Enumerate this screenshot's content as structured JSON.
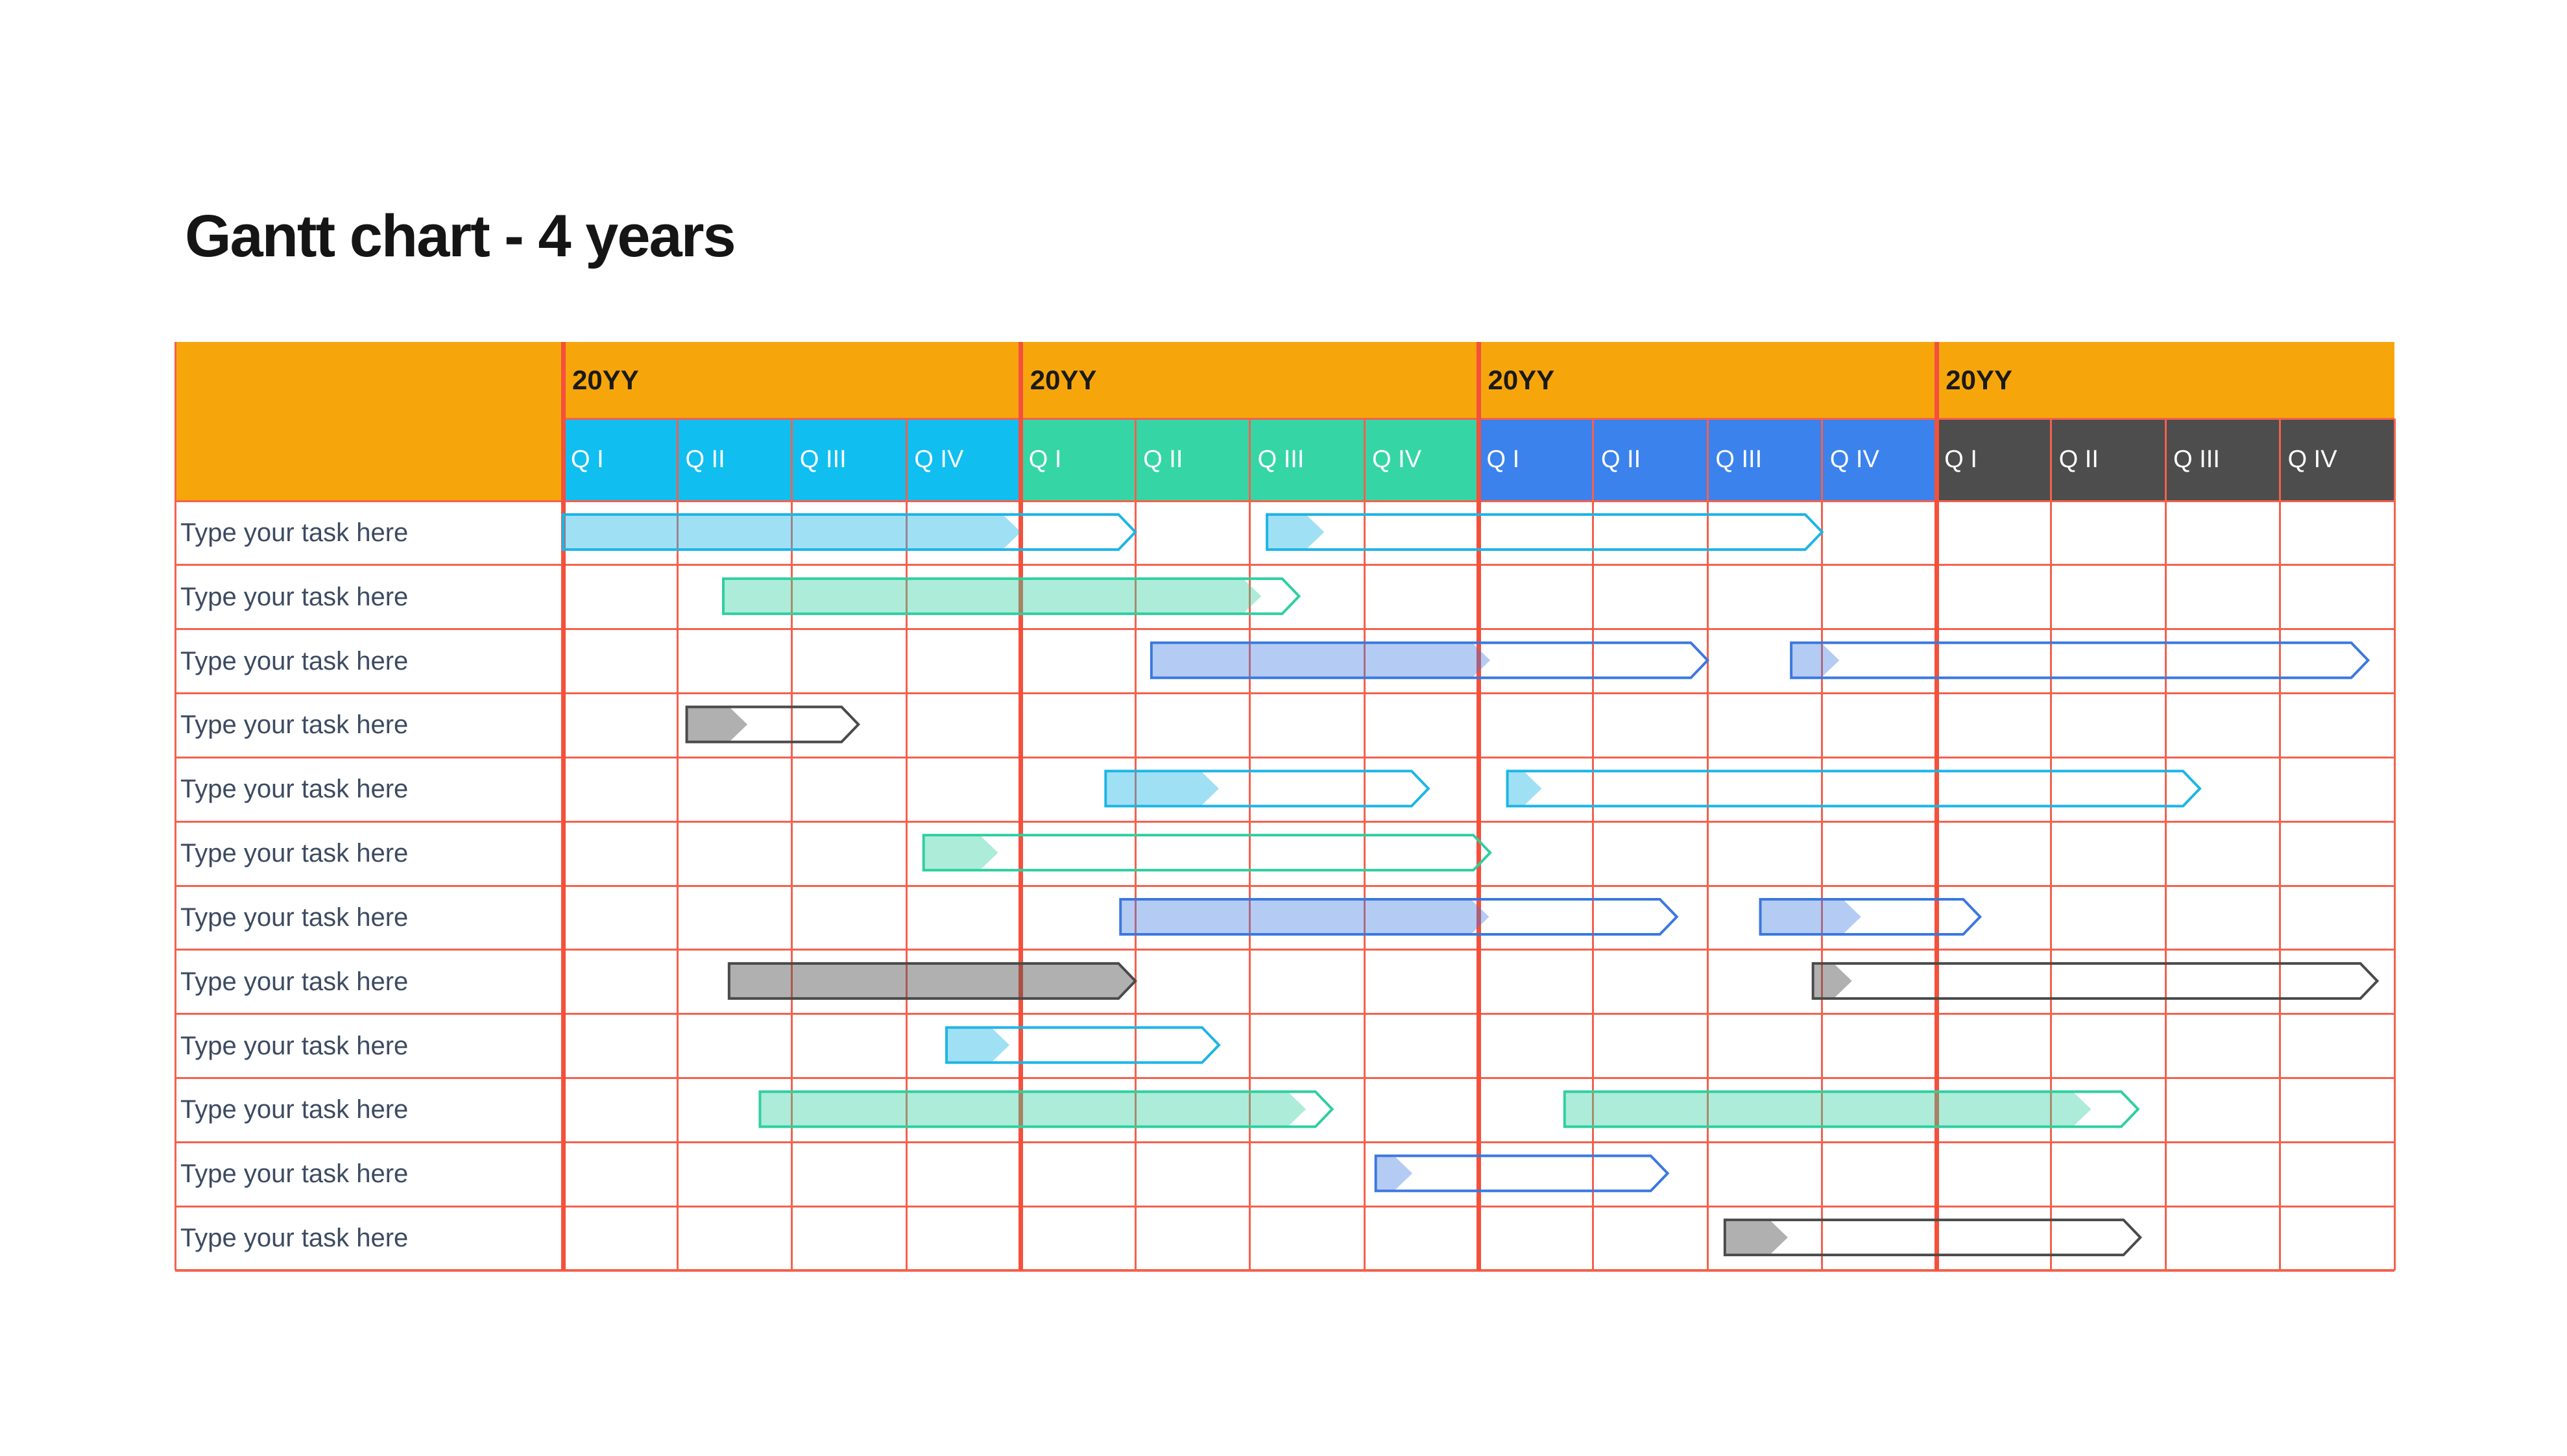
{
  "title": "Gantt chart - 4 years",
  "palette": {
    "header_orange": "#F6A60B",
    "quarter_year_colors": [
      "#10BEF0",
      "#35D5A5",
      "#3B82EC",
      "#4D4D4D"
    ],
    "grid_thin_line": "#F4614D",
    "grid_year_line": "#F4503C",
    "task_text": "#3D4B61",
    "title_text": "#151515",
    "bar_styles": {
      "cyan": {
        "stroke": "#1CB5E6",
        "fill": "rgba(28,181,230,0.42)"
      },
      "green": {
        "stroke": "#2FCFA0",
        "fill": "rgba(47,207,160,0.40)"
      },
      "blue": {
        "stroke": "#3B78E0",
        "fill": "rgba(59,120,224,0.38)"
      },
      "gray": {
        "stroke": "#4A4A4A",
        "fill": "rgba(80,80,80,0.45)"
      }
    }
  },
  "chart_data": {
    "type": "gantt",
    "title": "Gantt chart - 4 years",
    "timeline": {
      "years": [
        "20YY",
        "20YY",
        "20YY",
        "20YY"
      ],
      "quarters_per_year": [
        "Q I",
        "Q II",
        "Q III",
        "Q IV"
      ],
      "total_quarters": 16
    },
    "tasks": [
      "Type your task here",
      "Type your task here",
      "Type your task here",
      "Type your task here",
      "Type your task here",
      "Type your task here",
      "Type your task here",
      "Type your task here",
      "Type your task here",
      "Type your task here",
      "Type your task here",
      "Type your task here"
    ],
    "bars_units": "quarters from timeline start (0 = start of year 1, 16 = end of year 4); start_q = bar start, fill_end_q = tip of colored progress chevron, end_q = tip of outlined arrow",
    "bars": [
      {
        "row": 1,
        "color": "cyan",
        "start_q": 0.0,
        "fill_end_q": 4.0,
        "end_q": 5.0,
        "solid": false
      },
      {
        "row": 1,
        "color": "cyan",
        "start_q": 6.15,
        "fill_end_q": 6.65,
        "end_q": 11.0,
        "solid": false
      },
      {
        "row": 2,
        "color": "green",
        "start_q": 1.4,
        "fill_end_q": 6.1,
        "end_q": 6.43,
        "solid": false
      },
      {
        "row": 3,
        "color": "blue",
        "start_q": 5.14,
        "fill_end_q": 8.1,
        "end_q": 10.0,
        "solid": false
      },
      {
        "row": 3,
        "color": "blue",
        "start_q": 10.73,
        "fill_end_q": 11.15,
        "end_q": 15.77,
        "solid": false
      },
      {
        "row": 4,
        "color": "gray",
        "start_q": 1.08,
        "fill_end_q": 1.61,
        "end_q": 2.58,
        "solid": false
      },
      {
        "row": 5,
        "color": "cyan",
        "start_q": 4.74,
        "fill_end_q": 5.73,
        "end_q": 7.56,
        "solid": false
      },
      {
        "row": 5,
        "color": "cyan",
        "start_q": 8.25,
        "fill_end_q": 8.55,
        "end_q": 14.3,
        "solid": false
      },
      {
        "row": 6,
        "color": "green",
        "start_q": 3.15,
        "fill_end_q": 3.8,
        "end_q": 8.1,
        "solid": false
      },
      {
        "row": 7,
        "color": "blue",
        "start_q": 4.87,
        "fill_end_q": 8.09,
        "end_q": 9.73,
        "solid": false
      },
      {
        "row": 7,
        "color": "blue",
        "start_q": 10.46,
        "fill_end_q": 11.34,
        "end_q": 12.38,
        "solid": false
      },
      {
        "row": 8,
        "color": "gray",
        "start_q": 1.45,
        "fill_end_q": 5.0,
        "end_q": 5.0,
        "solid": true
      },
      {
        "row": 8,
        "color": "gray",
        "start_q": 10.92,
        "fill_end_q": 11.26,
        "end_q": 15.85,
        "solid": false
      },
      {
        "row": 9,
        "color": "cyan",
        "start_q": 3.35,
        "fill_end_q": 3.9,
        "end_q": 5.73,
        "solid": false
      },
      {
        "row": 10,
        "color": "green",
        "start_q": 1.72,
        "fill_end_q": 6.49,
        "end_q": 6.72,
        "solid": false
      },
      {
        "row": 10,
        "color": "green",
        "start_q": 8.75,
        "fill_end_q": 13.35,
        "end_q": 13.76,
        "solid": false
      },
      {
        "row": 11,
        "color": "blue",
        "start_q": 7.1,
        "fill_end_q": 7.42,
        "end_q": 9.65,
        "solid": false
      },
      {
        "row": 12,
        "color": "gray",
        "start_q": 10.15,
        "fill_end_q": 10.7,
        "end_q": 13.78,
        "solid": false
      }
    ]
  }
}
